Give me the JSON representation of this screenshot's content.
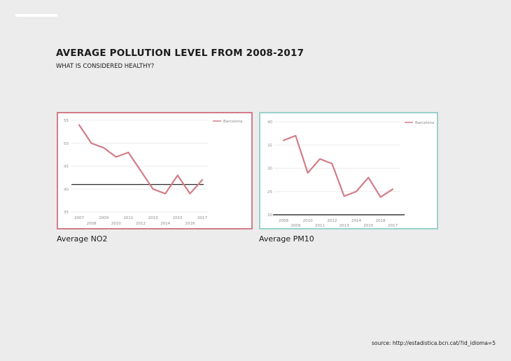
{
  "title": "AVERAGE POLLUTION LEVEL FROM 2008-2017",
  "subtitle": "WHAT IS CONSIDERED HEALTHY?",
  "source": "source: http://estadistica.bcn.cat/?id_idioma=5",
  "colors": {
    "series": "#d17d88",
    "panel_no2_border": "#d17d88",
    "panel_pm10_border": "#9ad1cb",
    "threshold": "#111111",
    "grid": "#e6e6e6",
    "background": "#ececec"
  },
  "chart_data": [
    {
      "type": "line",
      "caption": "Average NO2",
      "legend": "Barcelona",
      "x": [
        "2007",
        "2008",
        "2009",
        "2010",
        "2011",
        "2012",
        "2013",
        "2014",
        "2015",
        "2016",
        "2017"
      ],
      "series": [
        {
          "name": "Barcelona",
          "values": [
            54,
            50,
            49,
            47,
            48,
            44,
            40,
            39,
            43,
            39,
            42
          ]
        }
      ],
      "threshold": 41,
      "ylim": [
        35,
        55
      ],
      "yticks": [
        "35",
        "40",
        "45",
        "50",
        "55"
      ]
    },
    {
      "type": "line",
      "caption": "Average PM10",
      "legend": "Barcelona",
      "x": [
        "2008",
        "2009",
        "2010",
        "2011",
        "2012",
        "2013",
        "2014",
        "2015",
        "2016",
        "2017"
      ],
      "series": [
        {
          "name": "Barcelona",
          "values": [
            36,
            37,
            29,
            32,
            31,
            24,
            25,
            28,
            23.8,
            25.5
          ]
        }
      ],
      "threshold": 20,
      "ylim": [
        20,
        40
      ],
      "yticks": [
        "20",
        "25",
        "30",
        "35",
        "40"
      ]
    }
  ]
}
